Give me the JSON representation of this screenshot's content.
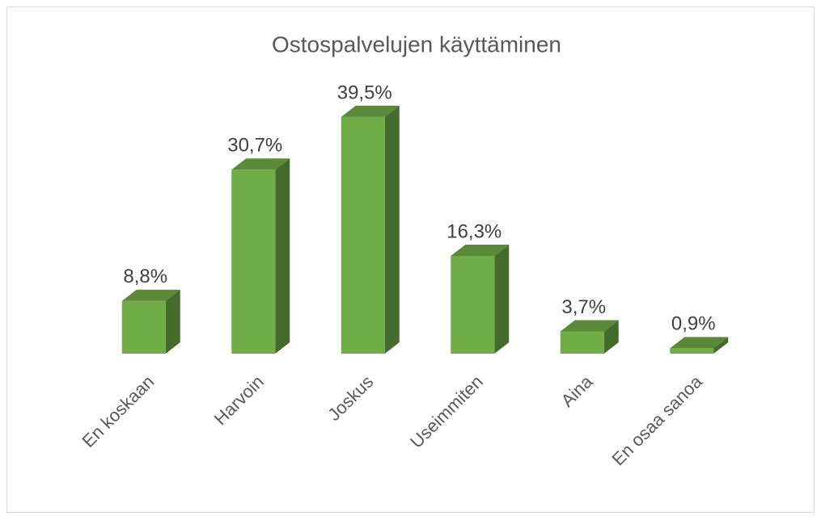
{
  "chart_data": {
    "type": "bar3d",
    "title": "Ostospalvelujen käyttäminen",
    "categories": [
      "En koskaan",
      "Harvoin",
      "Joskus",
      "Useimmiten",
      "Aina",
      "En osaa sanoa"
    ],
    "values": [
      8.8,
      30.7,
      39.5,
      16.3,
      3.7,
      0.9
    ],
    "value_labels": [
      "8,8%",
      "30,7%",
      "39,5%",
      "16,3%",
      "3,7%",
      "0,9%"
    ],
    "color": "#70ad47"
  }
}
